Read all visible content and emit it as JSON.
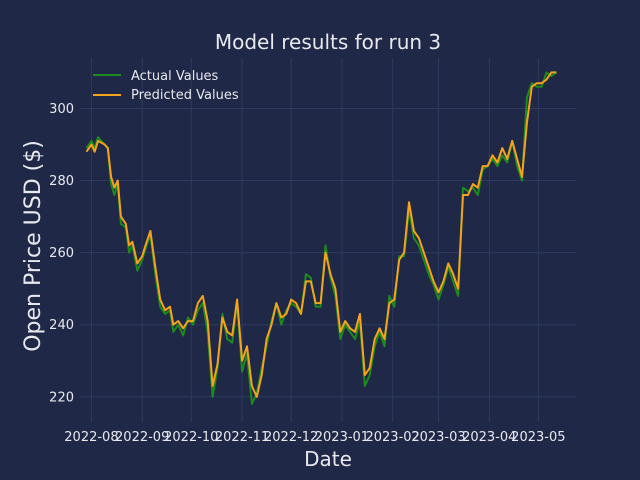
{
  "chart_data": {
    "type": "line",
    "title": "Model results for run 3",
    "xlabel": "Date",
    "ylabel": "Open Price USD ($)",
    "ylim": [
      213,
      314
    ],
    "xlim": [
      "2022-07-25",
      "2023-05-24"
    ],
    "x_ticks": [
      "2022-08",
      "2022-09",
      "2022-10",
      "2022-11",
      "2022-12",
      "2023-01",
      "2023-02",
      "2023-03",
      "2023-04",
      "2023-05"
    ],
    "y_ticks": [
      220,
      240,
      260,
      280,
      300
    ],
    "grid": true,
    "legend": "top-left",
    "background_color": "#1f2847",
    "series": [
      {
        "name": "Actual Values",
        "color": "#1c8a1c",
        "points": [
          [
            "2022-07-29",
            289
          ],
          [
            "2022-08-01",
            291
          ],
          [
            "2022-08-03",
            289
          ],
          [
            "2022-08-05",
            292
          ],
          [
            "2022-08-09",
            290
          ],
          [
            "2022-08-11",
            289
          ],
          [
            "2022-08-13",
            279
          ],
          [
            "2022-08-15",
            276
          ],
          [
            "2022-08-17",
            279
          ],
          [
            "2022-08-19",
            268
          ],
          [
            "2022-08-22",
            267
          ],
          [
            "2022-08-24",
            260
          ],
          [
            "2022-08-26",
            262
          ],
          [
            "2022-08-29",
            255
          ],
          [
            "2022-09-01",
            258
          ],
          [
            "2022-09-03",
            261
          ],
          [
            "2022-09-06",
            265
          ],
          [
            "2022-09-09",
            254
          ],
          [
            "2022-09-12",
            245
          ],
          [
            "2022-09-15",
            243
          ],
          [
            "2022-09-18",
            244
          ],
          [
            "2022-09-20",
            238
          ],
          [
            "2022-09-23",
            240
          ],
          [
            "2022-09-26",
            237
          ],
          [
            "2022-09-29",
            242
          ],
          [
            "2022-10-02",
            240
          ],
          [
            "2022-10-05",
            244
          ],
          [
            "2022-10-08",
            246
          ],
          [
            "2022-10-11",
            238
          ],
          [
            "2022-10-14",
            220
          ],
          [
            "2022-10-17",
            228
          ],
          [
            "2022-10-20",
            243
          ],
          [
            "2022-10-23",
            236
          ],
          [
            "2022-10-26",
            235
          ],
          [
            "2022-10-29",
            246
          ],
          [
            "2022-11-01",
            227
          ],
          [
            "2022-11-04",
            232
          ],
          [
            "2022-11-07",
            218
          ],
          [
            "2022-11-10",
            221
          ],
          [
            "2022-11-13",
            228
          ],
          [
            "2022-11-16",
            234
          ],
          [
            "2022-11-19",
            241
          ],
          [
            "2022-11-22",
            246
          ],
          [
            "2022-11-25",
            240
          ],
          [
            "2022-11-28",
            244
          ],
          [
            "2022-12-01",
            246
          ],
          [
            "2022-12-04",
            245
          ],
          [
            "2022-12-07",
            243
          ],
          [
            "2022-12-10",
            254
          ],
          [
            "2022-12-13",
            253
          ],
          [
            "2022-12-16",
            245
          ],
          [
            "2022-12-19",
            245
          ],
          [
            "2022-12-22",
            262
          ],
          [
            "2022-12-25",
            253
          ],
          [
            "2022-12-28",
            248
          ],
          [
            "2022-12-31",
            236
          ],
          [
            "2023-01-03",
            240
          ],
          [
            "2023-01-06",
            238
          ],
          [
            "2023-01-09",
            236
          ],
          [
            "2023-01-12",
            241
          ],
          [
            "2023-01-15",
            223
          ],
          [
            "2023-01-18",
            226
          ],
          [
            "2023-01-21",
            234
          ],
          [
            "2023-01-24",
            238
          ],
          [
            "2023-01-27",
            234
          ],
          [
            "2023-01-30",
            248
          ],
          [
            "2023-02-02",
            245
          ],
          [
            "2023-02-05",
            259
          ],
          [
            "2023-02-08",
            259
          ],
          [
            "2023-02-11",
            272
          ],
          [
            "2023-02-14",
            264
          ],
          [
            "2023-02-17",
            262
          ],
          [
            "2023-02-20",
            258
          ],
          [
            "2023-02-23",
            254
          ],
          [
            "2023-02-26",
            251
          ],
          [
            "2023-03-01",
            247
          ],
          [
            "2023-03-04",
            251
          ],
          [
            "2023-03-07",
            256
          ],
          [
            "2023-03-10",
            252
          ],
          [
            "2023-03-13",
            248
          ],
          [
            "2023-03-16",
            278
          ],
          [
            "2023-03-19",
            277
          ],
          [
            "2023-03-22",
            278
          ],
          [
            "2023-03-25",
            276
          ],
          [
            "2023-03-28",
            283
          ],
          [
            "2023-03-31",
            284
          ],
          [
            "2023-04-03",
            286
          ],
          [
            "2023-04-06",
            284
          ],
          [
            "2023-04-09",
            287
          ],
          [
            "2023-04-12",
            285
          ],
          [
            "2023-04-15",
            291
          ],
          [
            "2023-04-18",
            284
          ],
          [
            "2023-04-21",
            280
          ],
          [
            "2023-04-24",
            303
          ],
          [
            "2023-04-27",
            307
          ],
          [
            "2023-04-30",
            306
          ],
          [
            "2023-05-03",
            306
          ],
          [
            "2023-05-06",
            310
          ],
          [
            "2023-05-09",
            309
          ],
          [
            "2023-05-12",
            310
          ]
        ]
      },
      {
        "name": "Predicted Values",
        "color": "#f5a31a",
        "points": [
          [
            "2022-07-29",
            288
          ],
          [
            "2022-08-01",
            290
          ],
          [
            "2022-08-03",
            288
          ],
          [
            "2022-08-05",
            291
          ],
          [
            "2022-08-09",
            290
          ],
          [
            "2022-08-11",
            289
          ],
          [
            "2022-08-13",
            281
          ],
          [
            "2022-08-15",
            278
          ],
          [
            "2022-08-17",
            280
          ],
          [
            "2022-08-19",
            270
          ],
          [
            "2022-08-22",
            268
          ],
          [
            "2022-08-24",
            262
          ],
          [
            "2022-08-26",
            263
          ],
          [
            "2022-08-29",
            257
          ],
          [
            "2022-09-01",
            259
          ],
          [
            "2022-09-03",
            262
          ],
          [
            "2022-09-06",
            266
          ],
          [
            "2022-09-09",
            256
          ],
          [
            "2022-09-12",
            247
          ],
          [
            "2022-09-15",
            244
          ],
          [
            "2022-09-18",
            245
          ],
          [
            "2022-09-20",
            240
          ],
          [
            "2022-09-23",
            241
          ],
          [
            "2022-09-26",
            239
          ],
          [
            "2022-09-29",
            241
          ],
          [
            "2022-10-02",
            241
          ],
          [
            "2022-10-05",
            246
          ],
          [
            "2022-10-08",
            248
          ],
          [
            "2022-10-11",
            241
          ],
          [
            "2022-10-14",
            223
          ],
          [
            "2022-10-17",
            229
          ],
          [
            "2022-10-20",
            242
          ],
          [
            "2022-10-23",
            238
          ],
          [
            "2022-10-26",
            237
          ],
          [
            "2022-10-29",
            247
          ],
          [
            "2022-11-01",
            230
          ],
          [
            "2022-11-04",
            234
          ],
          [
            "2022-11-07",
            223
          ],
          [
            "2022-11-10",
            220
          ],
          [
            "2022-11-13",
            226
          ],
          [
            "2022-11-16",
            236
          ],
          [
            "2022-11-19",
            240
          ],
          [
            "2022-11-22",
            246
          ],
          [
            "2022-11-25",
            242
          ],
          [
            "2022-11-28",
            243
          ],
          [
            "2022-12-01",
            247
          ],
          [
            "2022-12-04",
            246
          ],
          [
            "2022-12-07",
            243
          ],
          [
            "2022-12-10",
            252
          ],
          [
            "2022-12-13",
            252
          ],
          [
            "2022-12-16",
            246
          ],
          [
            "2022-12-19",
            246
          ],
          [
            "2022-12-22",
            260
          ],
          [
            "2022-12-25",
            254
          ],
          [
            "2022-12-28",
            250
          ],
          [
            "2022-12-31",
            238
          ],
          [
            "2023-01-03",
            241
          ],
          [
            "2023-01-06",
            239
          ],
          [
            "2023-01-09",
            238
          ],
          [
            "2023-01-12",
            243
          ],
          [
            "2023-01-15",
            226
          ],
          [
            "2023-01-18",
            228
          ],
          [
            "2023-01-21",
            236
          ],
          [
            "2023-01-24",
            239
          ],
          [
            "2023-01-27",
            236
          ],
          [
            "2023-01-30",
            246
          ],
          [
            "2023-02-02",
            247
          ],
          [
            "2023-02-05",
            258
          ],
          [
            "2023-02-08",
            260
          ],
          [
            "2023-02-11",
            274
          ],
          [
            "2023-02-14",
            266
          ],
          [
            "2023-02-17",
            264
          ],
          [
            "2023-02-20",
            260
          ],
          [
            "2023-02-23",
            256
          ],
          [
            "2023-02-26",
            252
          ],
          [
            "2023-03-01",
            249
          ],
          [
            "2023-03-04",
            252
          ],
          [
            "2023-03-07",
            257
          ],
          [
            "2023-03-10",
            254
          ],
          [
            "2023-03-13",
            250
          ],
          [
            "2023-03-16",
            276
          ],
          [
            "2023-03-19",
            276
          ],
          [
            "2023-03-22",
            279
          ],
          [
            "2023-03-25",
            278
          ],
          [
            "2023-03-28",
            284
          ],
          [
            "2023-03-31",
            284
          ],
          [
            "2023-04-03",
            287
          ],
          [
            "2023-04-06",
            285
          ],
          [
            "2023-04-09",
            289
          ],
          [
            "2023-04-12",
            286
          ],
          [
            "2023-04-15",
            291
          ],
          [
            "2023-04-18",
            286
          ],
          [
            "2023-04-21",
            281
          ],
          [
            "2023-04-24",
            296
          ],
          [
            "2023-04-27",
            306
          ],
          [
            "2023-04-30",
            307
          ],
          [
            "2023-05-03",
            307
          ],
          [
            "2023-05-06",
            308
          ],
          [
            "2023-05-09",
            310
          ],
          [
            "2023-05-12",
            310
          ]
        ]
      }
    ]
  }
}
